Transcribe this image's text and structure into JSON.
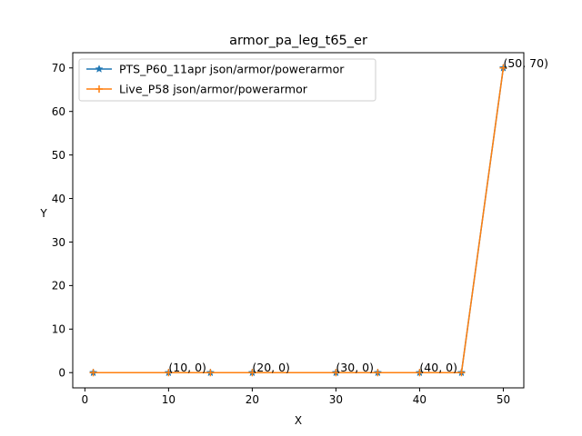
{
  "chart_data": {
    "type": "line",
    "title": "armor_pa_leg_t65_er",
    "xlabel": "X",
    "ylabel": "Y",
    "xlim": [
      -1.45,
      52.45
    ],
    "ylim": [
      -3.5,
      73.5
    ],
    "xticks": [
      0,
      10,
      20,
      30,
      40,
      50
    ],
    "yticks": [
      0,
      10,
      20,
      30,
      40,
      50,
      60,
      70
    ],
    "grid": false,
    "legend_position": "top-left",
    "series": [
      {
        "name": "PTS_P60_11apr json/armor/powerarmor",
        "color": "#1f77b4",
        "marker": "star",
        "x": [
          1,
          10,
          15,
          20,
          30,
          35,
          40,
          45,
          50
        ],
        "y": [
          0,
          0,
          0,
          0,
          0,
          0,
          0,
          0,
          70
        ]
      },
      {
        "name": "Live_P58 json/armor/powerarmor",
        "color": "#ff7f0e",
        "marker": "plus",
        "x": [
          1,
          10,
          15,
          20,
          30,
          35,
          40,
          45,
          50
        ],
        "y": [
          0,
          0,
          0,
          0,
          0,
          0,
          0,
          0,
          70
        ]
      }
    ],
    "annotations": [
      {
        "x": 10,
        "y": 0,
        "text": "(10, 0)"
      },
      {
        "x": 20,
        "y": 0,
        "text": "(20, 0)"
      },
      {
        "x": 30,
        "y": 0,
        "text": "(30, 0)"
      },
      {
        "x": 40,
        "y": 0,
        "text": "(40, 0)"
      },
      {
        "x": 50,
        "y": 70,
        "text": "(50, 70)"
      }
    ]
  }
}
